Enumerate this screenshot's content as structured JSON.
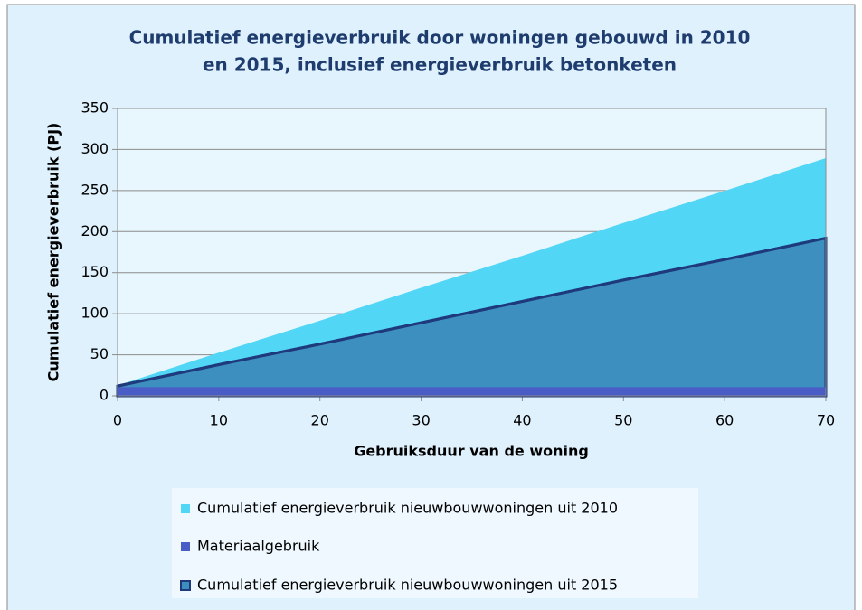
{
  "chart_data": {
    "type": "area",
    "title": "Cumulatief energieverbruik door woningen gebouwd in 2010",
    "subtitle": "en 2015, inclusief energieverbruik betonketen",
    "x_label": "Gebruiksduur van de woning",
    "y_label": "Cumulatief energieverbruik (PJ)",
    "x": [
      0,
      10,
      20,
      30,
      40,
      50,
      60,
      70
    ],
    "series": [
      {
        "name": "Cumulatief energieverbruik nieuwbouwwoningen uit 2010",
        "color": "#52d6f6",
        "values": [
          12,
          52,
          91,
          131,
          170,
          210,
          249,
          289
        ]
      },
      {
        "name": "Materiaalgebruik",
        "color": "#4a5cc6",
        "values": [
          10,
          10,
          10,
          10,
          10,
          10,
          10,
          10
        ]
      },
      {
        "name": "Cumulatief energieverbruik nieuwbouwwoningen uit 2015",
        "color": "#3d8fc0",
        "values": [
          12,
          38,
          63,
          89,
          115,
          141,
          166,
          192
        ]
      }
    ],
    "xlim": [
      0,
      70
    ],
    "xticks": [
      0,
      10,
      20,
      30,
      40,
      50,
      60,
      70
    ],
    "ylim": [
      0,
      350
    ],
    "yticks": [
      0,
      50,
      100,
      150,
      200,
      250,
      300,
      350
    ],
    "grid": true
  }
}
